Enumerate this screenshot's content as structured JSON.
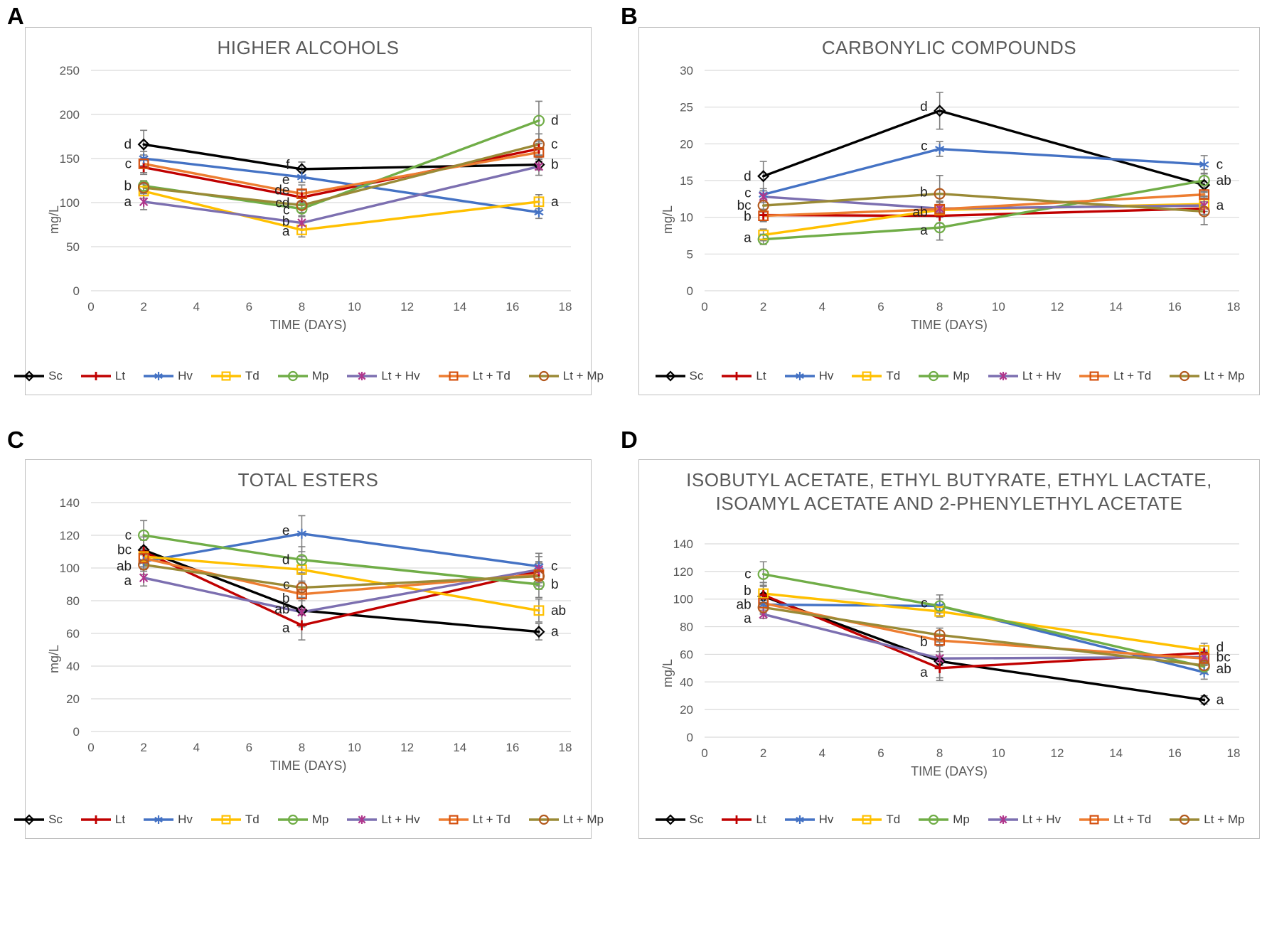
{
  "figure": {
    "panel_labels": [
      "A",
      "B",
      "C",
      "D"
    ],
    "axis_text_color": "#595959",
    "grid_color": "#d9d9d9",
    "error_bar_color": "#7f7f7f",
    "letter_color": "#1f1f1f",
    "border_color": "#bfbfbf"
  },
  "legend": {
    "entries": [
      {
        "name": "Sc",
        "label": "Sc"
      },
      {
        "name": "Lt",
        "label": "Lt"
      },
      {
        "name": "Hv",
        "label": "Hv"
      },
      {
        "name": "Td",
        "label": "Td"
      },
      {
        "name": "Mp",
        "label": "Mp"
      },
      {
        "name": "Lt + Hv",
        "label": "Lt + Hv"
      },
      {
        "name": "Lt + Td",
        "label": "Lt + Td"
      },
      {
        "name": "Lt + Mp",
        "label": "Lt + Mp"
      }
    ]
  },
  "styles": {
    "series": {
      "Sc": {
        "color": "#000000",
        "marker": "diamond",
        "marker_color": "#000000"
      },
      "Lt": {
        "color": "#c00000",
        "marker": "plus",
        "marker_color": "#c00000"
      },
      "Hv": {
        "color": "#4472c4",
        "marker": "asterisk",
        "marker_color": "#4472c4"
      },
      "Td": {
        "color": "#ffc000",
        "marker": "square",
        "marker_color": "#ffc000"
      },
      "Mp": {
        "color": "#70ad47",
        "marker": "circle",
        "marker_color": "#70ad47"
      },
      "Lt + Hv": {
        "color": "#7c6fb0",
        "marker": "xstar",
        "marker_color": "#b0368c"
      },
      "Lt + Td": {
        "color": "#ed7d31",
        "marker": "square",
        "marker_color": "#d4500f"
      },
      "Lt + Mp": {
        "color": "#9a8a36",
        "marker": "circle",
        "marker_color": "#b35a1e"
      }
    }
  },
  "chart_data": [
    {
      "type": "line",
      "panel_label": "A",
      "title": "HIGHER ALCOHOLS",
      "xlabel": "TIME (DAYS)",
      "ylabel": "mg/L",
      "x": [
        2,
        8,
        17
      ],
      "xlim": [
        0,
        18
      ],
      "xticks": [
        0,
        2,
        4,
        6,
        8,
        10,
        12,
        14,
        16,
        18
      ],
      "ylim": [
        0,
        250
      ],
      "yticks": [
        0,
        50,
        100,
        150,
        200,
        250
      ],
      "grid": true,
      "legend_position": "bottom",
      "series": [
        {
          "name": "Sc",
          "values": [
            166,
            138,
            143
          ],
          "errors": [
            16,
            8,
            6
          ]
        },
        {
          "name": "Lt",
          "values": [
            140,
            106,
            161
          ],
          "errors": [
            8,
            8,
            8
          ]
        },
        {
          "name": "Hv",
          "values": [
            150,
            129,
            89
          ],
          "errors": [
            8,
            6,
            7
          ]
        },
        {
          "name": "Td",
          "values": [
            113,
            69,
            101
          ],
          "errors": [
            8,
            8,
            8
          ]
        },
        {
          "name": "Mp",
          "values": [
            119,
            93,
            193
          ],
          "errors": [
            6,
            8,
            22
          ]
        },
        {
          "name": "Lt + Hv",
          "values": [
            101,
            77,
            141
          ],
          "errors": [
            9,
            7,
            10
          ]
        },
        {
          "name": "Lt + Td",
          "values": [
            144,
            110,
            157
          ],
          "errors": [
            10,
            10,
            10
          ]
        },
        {
          "name": "Lt + Mp",
          "values": [
            117,
            97,
            166
          ],
          "errors": [
            6,
            8,
            12
          ]
        }
      ],
      "annotations": [
        {
          "x": 2,
          "series": "Sc",
          "text": "d",
          "side": "left"
        },
        {
          "x": 2,
          "series": "Lt + Td",
          "text": "c",
          "side": "left"
        },
        {
          "x": 2,
          "series": "Mp",
          "text": "b",
          "side": "left"
        },
        {
          "x": 2,
          "series": "Lt + Hv",
          "text": "a",
          "side": "left"
        },
        {
          "x": 8,
          "series": "Sc",
          "text": "f",
          "side": "left",
          "dy": -6
        },
        {
          "x": 8,
          "series": "Hv",
          "text": "e",
          "side": "left",
          "dy": 4
        },
        {
          "x": 8,
          "series": "Lt + Td",
          "text": "de",
          "side": "left",
          "dy": -5
        },
        {
          "x": 8,
          "series": "Lt",
          "text": "cd",
          "side": "left",
          "dy": 8
        },
        {
          "x": 8,
          "series": "Mp",
          "text": "c",
          "side": "left",
          "dy": 2
        },
        {
          "x": 8,
          "series": "Lt + Hv",
          "text": "b",
          "side": "left",
          "dy": -2
        },
        {
          "x": 8,
          "series": "Td",
          "text": "a",
          "side": "left",
          "dy": 2
        },
        {
          "x": 17,
          "series": "Mp",
          "text": "d",
          "side": "right"
        },
        {
          "x": 17,
          "series": "Lt + Mp",
          "text": "c",
          "side": "right"
        },
        {
          "x": 17,
          "series": "Sc",
          "text": "b",
          "side": "right"
        },
        {
          "x": 17,
          "series": "Td",
          "text": "a",
          "side": "right"
        }
      ]
    },
    {
      "type": "line",
      "panel_label": "B",
      "title": "CARBONYLIC COMPOUNDS",
      "xlabel": "TIME (DAYS)",
      "ylabel": "mg/L",
      "x": [
        2,
        8,
        17
      ],
      "xlim": [
        0,
        18
      ],
      "xticks": [
        0,
        2,
        4,
        6,
        8,
        10,
        12,
        14,
        16,
        18
      ],
      "ylim": [
        0,
        30
      ],
      "yticks": [
        0,
        5,
        10,
        15,
        20,
        25,
        30
      ],
      "grid": true,
      "legend_position": "bottom",
      "series": [
        {
          "name": "Sc",
          "values": [
            15.6,
            24.5,
            14.4
          ],
          "errors": [
            2,
            2.5,
            1.5
          ]
        },
        {
          "name": "Lt",
          "values": [
            10.3,
            10.2,
            11.2
          ],
          "errors": [
            0.8,
            1,
            2.2
          ]
        },
        {
          "name": "Hv",
          "values": [
            13.1,
            19.3,
            17.2
          ],
          "errors": [
            0.8,
            1,
            1.2
          ]
        },
        {
          "name": "Td",
          "values": [
            7.6,
            11.0,
            11.8
          ],
          "errors": [
            0.8,
            1,
            1
          ]
        },
        {
          "name": "Mp",
          "values": [
            7.0,
            8.6,
            15.0
          ],
          "errors": [
            0.7,
            1.7,
            1.5
          ]
        },
        {
          "name": "Lt + Hv",
          "values": [
            12.8,
            11.2,
            11.6
          ],
          "errors": [
            0.8,
            1,
            1.2
          ]
        },
        {
          "name": "Lt + Td",
          "values": [
            10.2,
            11.1,
            13.1
          ],
          "errors": [
            0.8,
            1,
            1
          ]
        },
        {
          "name": "Lt + Mp",
          "values": [
            11.6,
            13.2,
            10.8
          ],
          "errors": [
            0.9,
            2.5,
            1.8
          ]
        }
      ],
      "annotations": [
        {
          "x": 2,
          "series": "Sc",
          "text": "d",
          "side": "left"
        },
        {
          "x": 2,
          "series": "Hv",
          "text": "c",
          "side": "left",
          "dy": -2
        },
        {
          "x": 2,
          "series": "Lt + Mp",
          "text": "bc",
          "side": "left"
        },
        {
          "x": 2,
          "series": "Lt",
          "text": "b",
          "side": "left",
          "dy": 2
        },
        {
          "x": 2,
          "series": "Td",
          "text": "a",
          "side": "left",
          "dy": 4
        },
        {
          "x": 8,
          "series": "Sc",
          "text": "d",
          "side": "left",
          "dy": -6
        },
        {
          "x": 8,
          "series": "Hv",
          "text": "c",
          "side": "left",
          "dy": -4
        },
        {
          "x": 8,
          "series": "Lt + Mp",
          "text": "b",
          "side": "left",
          "dy": -2
        },
        {
          "x": 8,
          "series": "Lt + Td",
          "text": "ab",
          "side": "left",
          "dy": 4
        },
        {
          "x": 8,
          "series": "Mp",
          "text": "a",
          "side": "left",
          "dy": 4
        },
        {
          "x": 17,
          "series": "Hv",
          "text": "c",
          "side": "right"
        },
        {
          "x": 17,
          "series": "Mp",
          "text": "ab",
          "side": "right"
        },
        {
          "x": 17,
          "series": "Lt + Hv",
          "text": "a",
          "side": "right"
        }
      ]
    },
    {
      "type": "line",
      "panel_label": "C",
      "title": "TOTAL ESTERS",
      "xlabel": "TIME (DAYS)",
      "ylabel": "mg/L",
      "x": [
        2,
        8,
        17
      ],
      "xlim": [
        0,
        18
      ],
      "xticks": [
        0,
        2,
        4,
        6,
        8,
        10,
        12,
        14,
        16,
        18
      ],
      "ylim": [
        0,
        140
      ],
      "yticks": [
        0,
        20,
        40,
        60,
        80,
        100,
        120,
        140
      ],
      "grid": true,
      "legend_position": "bottom",
      "series": [
        {
          "name": "Sc",
          "values": [
            111,
            74,
            61
          ],
          "errors": [
            8,
            8,
            5
          ]
        },
        {
          "name": "Lt",
          "values": [
            110,
            65,
            98
          ],
          "errors": [
            7,
            9,
            6
          ]
        },
        {
          "name": "Hv",
          "values": [
            104,
            121,
            101
          ],
          "errors": [
            6,
            11,
            8
          ]
        },
        {
          "name": "Td",
          "values": [
            107,
            99,
            74
          ],
          "errors": [
            6,
            8,
            7
          ]
        },
        {
          "name": "Mp",
          "values": [
            120,
            105,
            90
          ],
          "errors": [
            9,
            8,
            8
          ]
        },
        {
          "name": "Lt + Hv",
          "values": [
            94,
            73,
            99
          ],
          "errors": [
            5,
            9,
            8
          ]
        },
        {
          "name": "Lt + Td",
          "values": [
            106,
            84,
            96
          ],
          "errors": [
            6,
            8,
            7
          ]
        },
        {
          "name": "Lt + Mp",
          "values": [
            102,
            88,
            95
          ],
          "errors": [
            6,
            8,
            8
          ]
        }
      ],
      "annotations": [
        {
          "x": 2,
          "series": "Mp",
          "text": "c",
          "side": "left"
        },
        {
          "x": 2,
          "series": "Sc",
          "text": "bc",
          "side": "left"
        },
        {
          "x": 2,
          "series": "Lt + Mp",
          "text": "ab",
          "side": "left",
          "dy": 2
        },
        {
          "x": 2,
          "series": "Lt + Hv",
          "text": "a",
          "side": "left",
          "dy": 4
        },
        {
          "x": 8,
          "series": "Hv",
          "text": "e",
          "side": "left",
          "dy": -4
        },
        {
          "x": 8,
          "series": "Mp",
          "text": "d",
          "side": "left"
        },
        {
          "x": 8,
          "series": "Lt + Mp",
          "text": "c",
          "side": "left",
          "dy": -4
        },
        {
          "x": 8,
          "series": "Lt + Td",
          "text": "b",
          "side": "left",
          "dy": 6
        },
        {
          "x": 8,
          "series": "Sc",
          "text": "ab",
          "side": "left",
          "dy": -2
        },
        {
          "x": 8,
          "series": "Lt",
          "text": "a",
          "side": "left",
          "dy": 4
        },
        {
          "x": 17,
          "series": "Hv",
          "text": "c",
          "side": "right"
        },
        {
          "x": 17,
          "series": "Mp",
          "text": "b",
          "side": "right"
        },
        {
          "x": 17,
          "series": "Td",
          "text": "ab",
          "side": "right"
        },
        {
          "x": 17,
          "series": "Sc",
          "text": "a",
          "side": "right"
        }
      ]
    },
    {
      "type": "line",
      "panel_label": "D",
      "title": "ISOBUTYL ACETATE, ETHYL BUTYRATE, ETHYL LACTATE, ISOAMYL ACETATE AND 2-PHENYLETHYL ACETATE",
      "xlabel": "TIME (DAYS)",
      "ylabel": "mg/L",
      "x": [
        2,
        8,
        17
      ],
      "xlim": [
        0,
        18
      ],
      "xticks": [
        0,
        2,
        4,
        6,
        8,
        10,
        12,
        14,
        16,
        18
      ],
      "ylim": [
        0,
        140
      ],
      "yticks": [
        0,
        20,
        40,
        60,
        80,
        100,
        120,
        140
      ],
      "grid": true,
      "legend_position": "bottom",
      "series": [
        {
          "name": "Sc",
          "values": [
            102,
            55,
            27
          ],
          "errors": [
            8,
            12,
            3
          ]
        },
        {
          "name": "Lt",
          "values": [
            103,
            50,
            61
          ],
          "errors": [
            9,
            9,
            5
          ]
        },
        {
          "name": "Hv",
          "values": [
            96,
            95,
            47
          ],
          "errors": [
            6,
            5,
            5
          ]
        },
        {
          "name": "Td",
          "values": [
            104,
            91,
            63
          ],
          "errors": [
            8,
            3,
            5
          ]
        },
        {
          "name": "Mp",
          "values": [
            118,
            95,
            51
          ],
          "errors": [
            9,
            8,
            5
          ]
        },
        {
          "name": "Lt + Hv",
          "values": [
            89,
            57,
            58
          ],
          "errors": [
            3,
            5,
            5
          ]
        },
        {
          "name": "Lt + Td",
          "values": [
            97,
            70,
            57
          ],
          "errors": [
            7,
            4,
            5
          ]
        },
        {
          "name": "Lt + Mp",
          "values": [
            94,
            74,
            52
          ],
          "errors": [
            5,
            5,
            5
          ]
        }
      ],
      "annotations": [
        {
          "x": 2,
          "series": "Mp",
          "text": "c",
          "side": "left"
        },
        {
          "x": 2,
          "series": "Td",
          "text": "b",
          "side": "left",
          "dy": -4
        },
        {
          "x": 2,
          "series": "Lt + Td",
          "text": "ab",
          "side": "left",
          "dy": 2
        },
        {
          "x": 2,
          "series": "Lt + Hv",
          "text": "a",
          "side": "left",
          "dy": 6
        },
        {
          "x": 8,
          "series": "Mp",
          "text": "c",
          "side": "left",
          "dy": -4
        },
        {
          "x": 8,
          "series": "Lt + Td",
          "text": "b",
          "side": "left",
          "dy": 2
        },
        {
          "x": 8,
          "series": "Lt",
          "text": "a",
          "side": "left",
          "dy": 6
        },
        {
          "x": 17,
          "series": "Td",
          "text": "d",
          "side": "right",
          "dy": -4
        },
        {
          "x": 17,
          "series": "Lt + Hv",
          "text": "bc",
          "side": "right"
        },
        {
          "x": 17,
          "series": "Lt + Mp",
          "text": "ab",
          "side": "right",
          "dy": 5
        },
        {
          "x": 17,
          "series": "Sc",
          "text": "a",
          "side": "right"
        }
      ]
    }
  ]
}
